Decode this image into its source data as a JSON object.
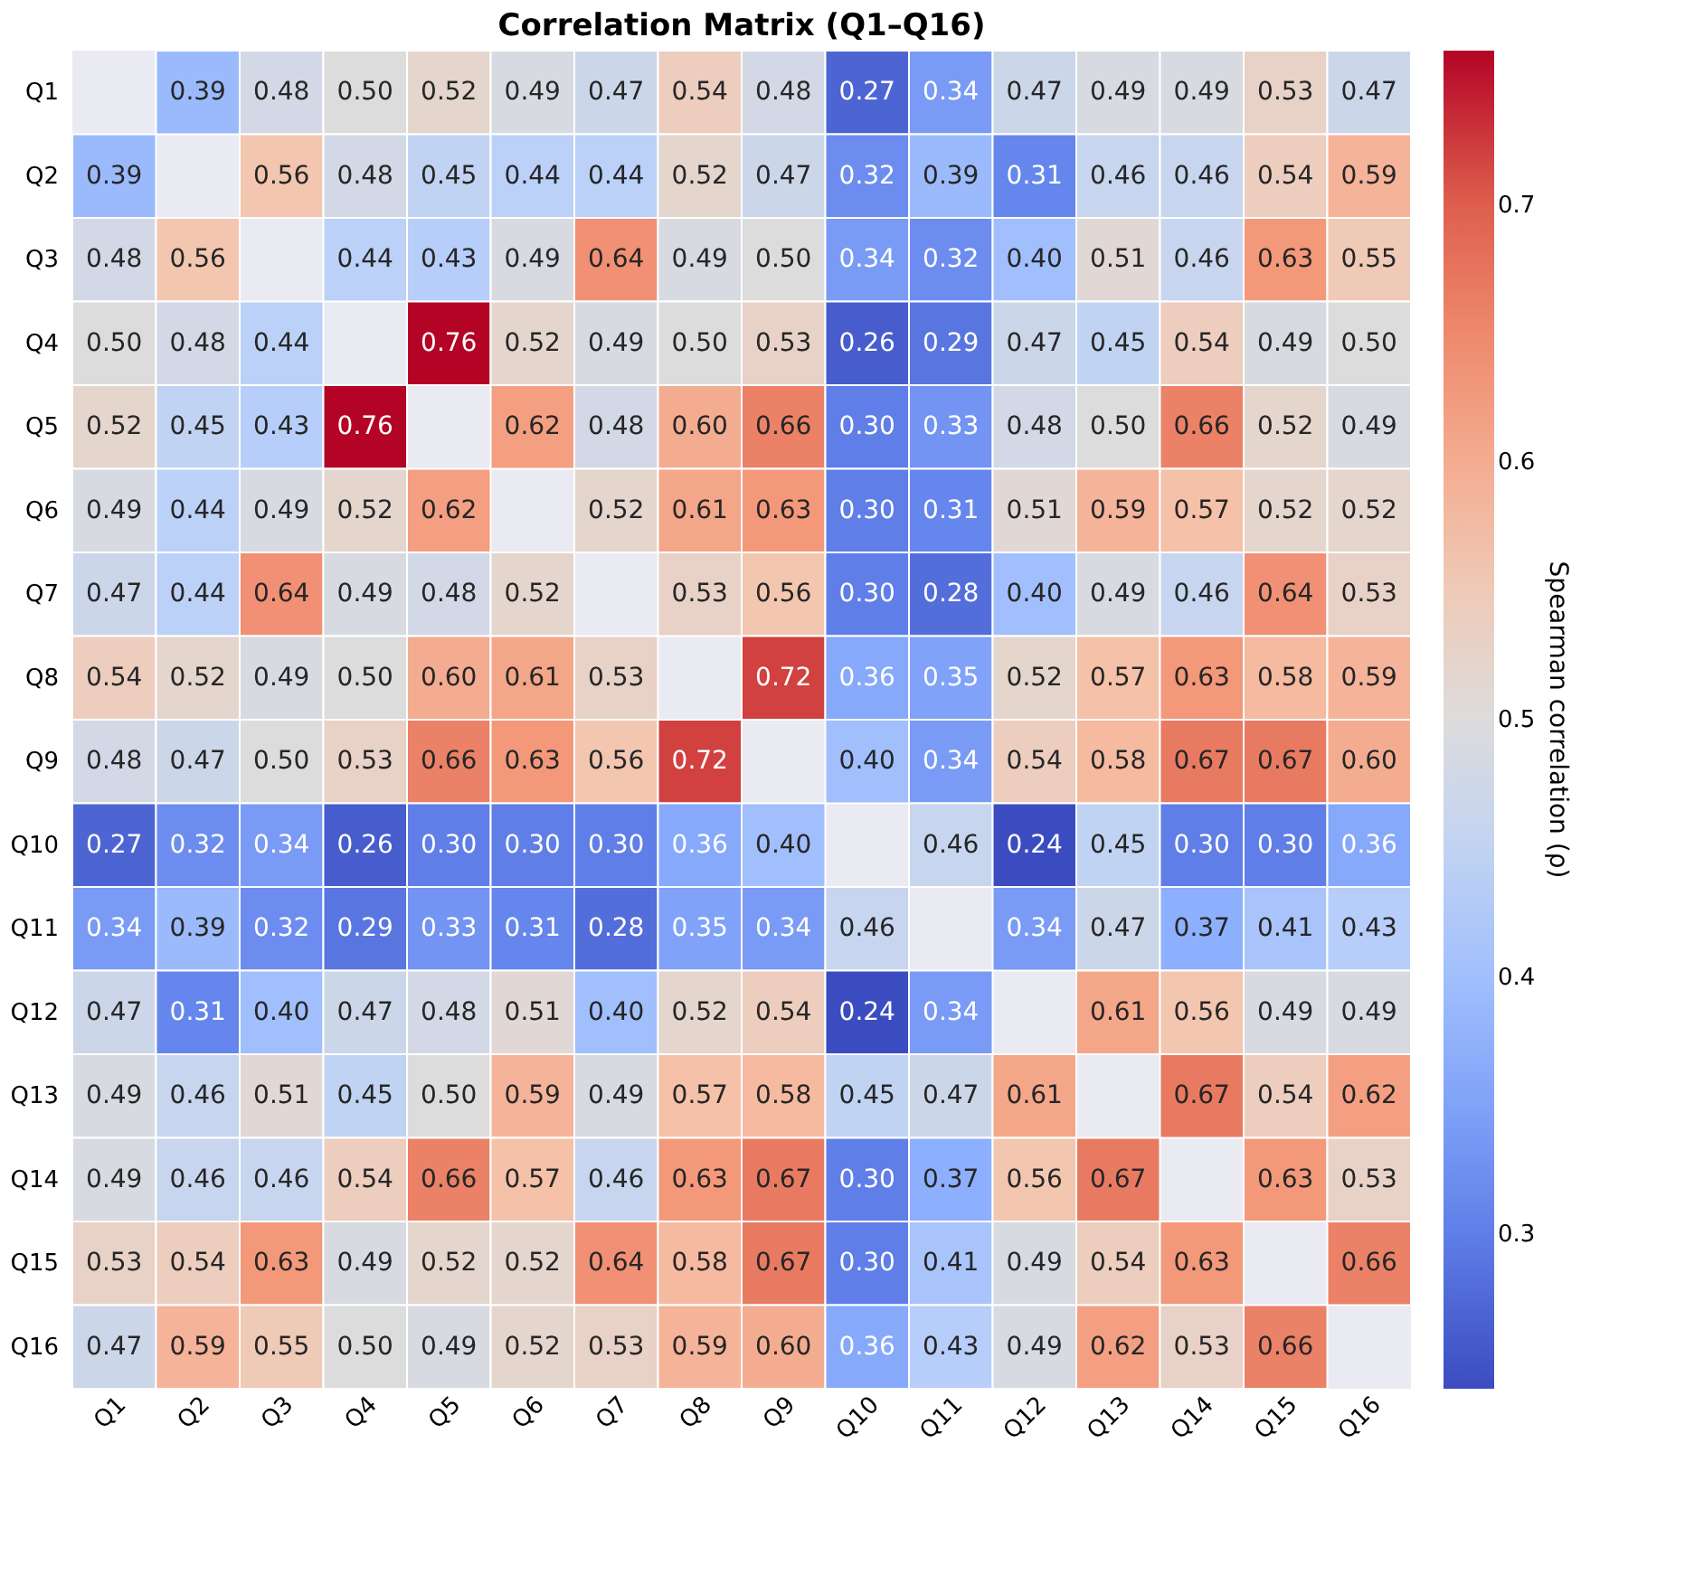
{
  "chart_data": {
    "type": "heatmap",
    "title": "Correlation Matrix (Q1–Q16)",
    "clabel": "Spearman correlation (ρ)",
    "categories": [
      "Q1",
      "Q2",
      "Q3",
      "Q4",
      "Q5",
      "Q6",
      "Q7",
      "Q8",
      "Q9",
      "Q10",
      "Q11",
      "Q12",
      "Q13",
      "Q14",
      "Q15",
      "Q16"
    ],
    "y_categories": [
      "Q1",
      "Q2",
      "Q3",
      "Q4",
      "Q5",
      "Q6",
      "Q7",
      "Q8",
      "Q9",
      "Q10",
      "Q11",
      "Q12",
      "Q13",
      "Q14",
      "Q15",
      "Q16"
    ],
    "cells": [
      [
        null,
        0.39,
        0.48,
        0.5,
        0.52,
        0.49,
        0.47,
        0.54,
        0.48,
        0.27,
        0.34,
        0.47,
        0.49,
        0.49,
        0.53,
        0.47
      ],
      [
        0.39,
        null,
        0.56,
        0.48,
        0.45,
        0.44,
        0.44,
        0.52,
        0.47,
        0.32,
        0.39,
        0.31,
        0.46,
        0.46,
        0.54,
        0.59
      ],
      [
        0.48,
        0.56,
        null,
        0.44,
        0.43,
        0.49,
        0.64,
        0.49,
        0.5,
        0.34,
        0.32,
        0.4,
        0.51,
        0.46,
        0.63,
        0.55
      ],
      [
        0.5,
        0.48,
        0.44,
        null,
        0.76,
        0.52,
        0.49,
        0.5,
        0.53,
        0.26,
        0.29,
        0.47,
        0.45,
        0.54,
        0.49,
        0.5
      ],
      [
        0.52,
        0.45,
        0.43,
        0.76,
        null,
        0.62,
        0.48,
        0.6,
        0.66,
        0.3,
        0.33,
        0.48,
        0.5,
        0.66,
        0.52,
        0.49
      ],
      [
        0.49,
        0.44,
        0.49,
        0.52,
        0.62,
        null,
        0.52,
        0.61,
        0.63,
        0.3,
        0.31,
        0.51,
        0.59,
        0.57,
        0.52,
        0.52
      ],
      [
        0.47,
        0.44,
        0.64,
        0.49,
        0.48,
        0.52,
        null,
        0.53,
        0.56,
        0.3,
        0.28,
        0.4,
        0.49,
        0.46,
        0.64,
        0.53
      ],
      [
        0.54,
        0.52,
        0.49,
        0.5,
        0.6,
        0.61,
        0.53,
        null,
        0.72,
        0.36,
        0.35,
        0.52,
        0.57,
        0.63,
        0.58,
        0.59
      ],
      [
        0.48,
        0.47,
        0.5,
        0.53,
        0.66,
        0.63,
        0.56,
        0.72,
        null,
        0.4,
        0.34,
        0.54,
        0.58,
        0.67,
        0.67,
        0.6
      ],
      [
        0.27,
        0.32,
        0.34,
        0.26,
        0.3,
        0.3,
        0.3,
        0.36,
        0.4,
        null,
        0.46,
        0.24,
        0.45,
        0.3,
        0.3,
        0.36
      ],
      [
        0.34,
        0.39,
        0.32,
        0.29,
        0.33,
        0.31,
        0.28,
        0.35,
        0.34,
        0.46,
        null,
        0.34,
        0.47,
        0.37,
        0.41,
        0.43
      ],
      [
        0.47,
        0.31,
        0.4,
        0.47,
        0.48,
        0.51,
        0.4,
        0.52,
        0.54,
        0.24,
        0.34,
        null,
        0.61,
        0.56,
        0.49,
        0.49
      ],
      [
        0.49,
        0.46,
        0.51,
        0.45,
        0.5,
        0.59,
        0.49,
        0.57,
        0.58,
        0.45,
        0.47,
        0.61,
        null,
        0.67,
        0.54,
        0.62
      ],
      [
        0.49,
        0.46,
        0.46,
        0.54,
        0.66,
        0.57,
        0.46,
        0.63,
        0.67,
        0.3,
        0.37,
        0.56,
        0.67,
        null,
        0.63,
        0.53
      ],
      [
        0.53,
        0.54,
        0.63,
        0.49,
        0.52,
        0.52,
        0.64,
        0.58,
        0.67,
        0.3,
        0.41,
        0.49,
        0.54,
        0.63,
        null,
        0.66
      ],
      [
        0.47,
        0.59,
        0.55,
        0.5,
        0.49,
        0.52,
        0.53,
        0.59,
        0.6,
        0.36,
        0.43,
        0.49,
        0.62,
        0.53,
        0.66,
        null
      ]
    ],
    "cell_labels": [
      [
        null,
        "0.39",
        "0.48",
        "0.50",
        "0.52",
        "0.49",
        "0.47",
        "0.54",
        "0.48",
        "0.27",
        "0.34",
        "0.47",
        "0.49",
        "0.49",
        "0.53",
        "0.47"
      ],
      [
        "0.39",
        null,
        "0.56",
        "0.48",
        "0.45",
        "0.44",
        "0.44",
        "0.52",
        "0.47",
        "0.32",
        "0.39",
        "0.31",
        "0.46",
        "0.46",
        "0.54",
        "0.59"
      ],
      [
        "0.48",
        "0.56",
        null,
        "0.44",
        "0.43",
        "0.49",
        "0.64",
        "0.49",
        "0.50",
        "0.34",
        "0.32",
        "0.40",
        "0.51",
        "0.46",
        "0.63",
        "0.55"
      ],
      [
        "0.50",
        "0.48",
        "0.44",
        null,
        "0.76",
        "0.52",
        "0.49",
        "0.50",
        "0.53",
        "0.26",
        "0.29",
        "0.47",
        "0.45",
        "0.54",
        "0.49",
        "0.50"
      ],
      [
        "0.52",
        "0.45",
        "0.43",
        "0.76",
        null,
        "0.62",
        "0.48",
        "0.60",
        "0.66",
        "0.30",
        "0.33",
        "0.48",
        "0.50",
        "0.66",
        "0.52",
        "0.49"
      ],
      [
        "0.49",
        "0.44",
        "0.49",
        "0.52",
        "0.62",
        null,
        "0.52",
        "0.61",
        "0.63",
        "0.30",
        "0.31",
        "0.51",
        "0.59",
        "0.57",
        "0.52",
        "0.52"
      ],
      [
        "0.47",
        "0.44",
        "0.64",
        "0.49",
        "0.48",
        "0.52",
        null,
        "0.53",
        "0.56",
        "0.30",
        "0.28",
        "0.40",
        "0.49",
        "0.46",
        "0.64",
        "0.53"
      ],
      [
        "0.54",
        "0.52",
        "0.49",
        "0.50",
        "0.60",
        "0.61",
        "0.53",
        null,
        "0.72",
        "0.36",
        "0.35",
        "0.52",
        "0.57",
        "0.63",
        "0.58",
        "0.59"
      ],
      [
        "0.48",
        "0.47",
        "0.50",
        "0.53",
        "0.66",
        "0.63",
        "0.56",
        "0.72",
        null,
        "0.40",
        "0.34",
        "0.54",
        "0.58",
        "0.67",
        "0.67",
        "0.60"
      ],
      [
        "0.27",
        "0.32",
        "0.34",
        "0.26",
        "0.30",
        "0.30",
        "0.30",
        "0.36",
        "0.40",
        null,
        "0.46",
        "0.24",
        "0.45",
        "0.30",
        "0.30",
        "0.36"
      ],
      [
        "0.34",
        "0.39",
        "0.32",
        "0.29",
        "0.33",
        "0.31",
        "0.28",
        "0.35",
        "0.34",
        "0.46",
        null,
        "0.34",
        "0.47",
        "0.37",
        "0.41",
        "0.43"
      ],
      [
        "0.47",
        "0.31",
        "0.40",
        "0.47",
        "0.48",
        "0.51",
        "0.40",
        "0.52",
        "0.54",
        "0.24",
        "0.34",
        null,
        "0.61",
        "0.56",
        "0.49",
        "0.49"
      ],
      [
        "0.49",
        "0.46",
        "0.51",
        "0.45",
        "0.50",
        "0.59",
        "0.49",
        "0.57",
        "0.58",
        "0.45",
        "0.47",
        "0.61",
        null,
        "0.67",
        "0.54",
        "0.62"
      ],
      [
        "0.49",
        "0.46",
        "0.46",
        "0.54",
        "0.66",
        "0.57",
        "0.46",
        "0.63",
        "0.67",
        "0.30",
        "0.37",
        "0.56",
        "0.67",
        null,
        "0.63",
        "0.53"
      ],
      [
        "0.53",
        "0.54",
        "0.63",
        "0.49",
        "0.52",
        "0.52",
        "0.64",
        "0.58",
        "0.67",
        "0.30",
        "0.41",
        "0.49",
        "0.54",
        "0.63",
        null,
        "0.66"
      ],
      [
        "0.47",
        "0.59",
        "0.55",
        "0.50",
        "0.49",
        "0.52",
        "0.53",
        "0.59",
        "0.60",
        "0.36",
        "0.43",
        "0.49",
        "0.62",
        "0.53",
        "0.66",
        null
      ]
    ],
    "clim": [
      0.24,
      0.76
    ],
    "cticks": [
      0.3,
      0.4,
      0.5,
      0.6,
      0.7
    ],
    "data_labels": true
  }
}
